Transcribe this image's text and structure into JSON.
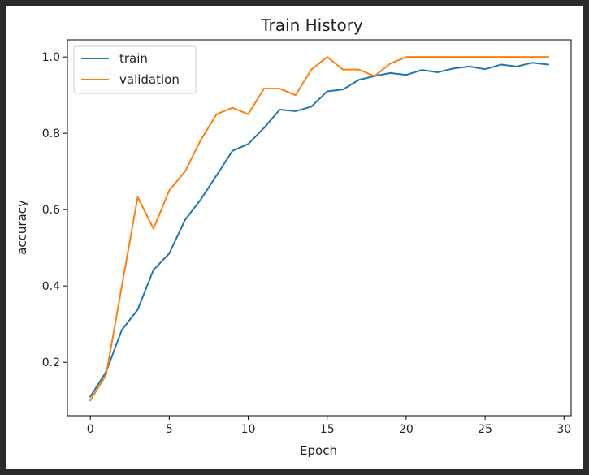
{
  "chart_data": {
    "type": "line",
    "title": "Train History",
    "xlabel": "Epoch",
    "ylabel": "accuracy",
    "xlim": [
      -1.45,
      30.45
    ],
    "ylim": [
      0.06,
      1.045
    ],
    "xticks": [
      0,
      5,
      10,
      15,
      20,
      25,
      30
    ],
    "xtick_labels": [
      "0",
      "5",
      "10",
      "15",
      "20",
      "25",
      "30"
    ],
    "yticks": [
      0.2,
      0.4,
      0.6,
      0.8,
      1.0
    ],
    "ytick_labels": [
      "0.2",
      "0.4",
      "0.6",
      "0.8",
      "1.0"
    ],
    "grid": false,
    "legend_position": "upper-left",
    "x": [
      0,
      1,
      2,
      3,
      4,
      5,
      6,
      7,
      8,
      9,
      10,
      11,
      12,
      13,
      14,
      15,
      16,
      17,
      18,
      19,
      20,
      21,
      22,
      23,
      24,
      25,
      26,
      27,
      28,
      29
    ],
    "series": [
      {
        "name": "train",
        "color": "#1f77b4",
        "values": [
          0.11,
          0.175,
          0.285,
          0.338,
          0.442,
          0.485,
          0.573,
          0.627,
          0.69,
          0.754,
          0.772,
          0.814,
          0.862,
          0.858,
          0.87,
          0.91,
          0.915,
          0.94,
          0.95,
          0.958,
          0.953,
          0.966,
          0.96,
          0.97,
          0.975,
          0.968,
          0.98,
          0.975,
          0.985,
          0.98
        ]
      },
      {
        "name": "validation",
        "color": "#ff7f0e",
        "values": [
          0.1,
          0.167,
          0.4,
          0.633,
          0.55,
          0.65,
          0.7,
          0.783,
          0.85,
          0.867,
          0.85,
          0.917,
          0.917,
          0.9,
          0.967,
          1.0,
          0.967,
          0.967,
          0.95,
          0.983,
          1.0,
          1.0,
          1.0,
          1.0,
          1.0,
          1.0,
          1.0,
          1.0,
          1.0,
          1.0
        ]
      }
    ]
  }
}
